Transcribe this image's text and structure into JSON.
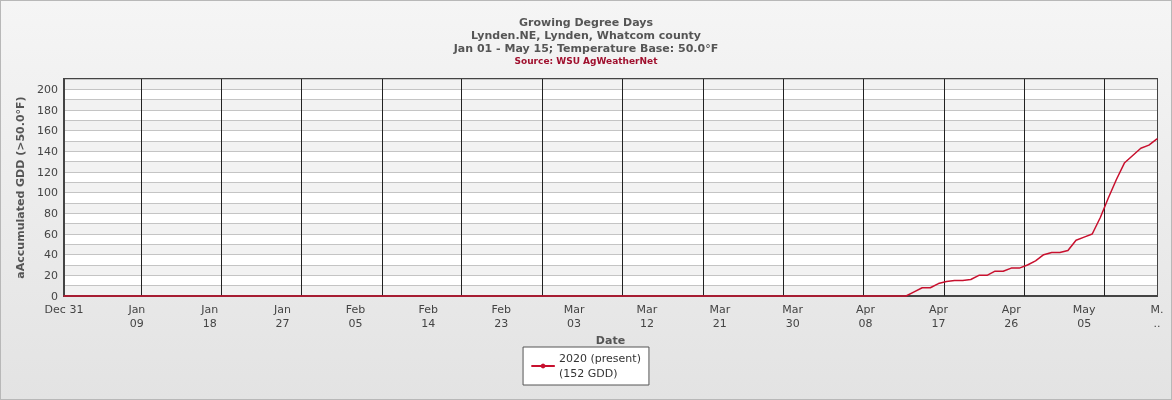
{
  "chart_data": {
    "type": "line",
    "title": "Growing Degree Days",
    "subtitle": "Lynden.NE, Lynden, Whatcom county\nJan 01 - May 15; Temperature Base: 50.0°F",
    "annotations": [
      "Source: WSU AgWeatherNet"
    ],
    "xlabel": "Date",
    "ylabel": "aAccumulated GDD (>50.0°F)",
    "x": [
      "2019-12-31",
      "2020-04-13",
      "2020-04-14",
      "2020-04-15",
      "2020-04-16",
      "2020-04-17",
      "2020-04-18",
      "2020-04-19",
      "2020-04-20",
      "2020-04-21",
      "2020-04-22",
      "2020-04-23",
      "2020-04-24",
      "2020-04-25",
      "2020-04-26",
      "2020-04-27",
      "2020-04-28",
      "2020-04-29",
      "2020-04-30",
      "2020-05-01",
      "2020-05-02",
      "2020-05-03",
      "2020-05-04",
      "2020-05-05",
      "2020-05-06",
      "2020-05-07",
      "2020-05-08",
      "2020-05-09",
      "2020-05-10",
      "2020-05-11",
      "2020-05-12",
      "2020-05-13",
      "2020-05-14"
    ],
    "series": [
      {
        "name": "2020 (present)\n(152 GDD)",
        "color": "#c8102e",
        "values": [
          0,
          0,
          4,
          8,
          8,
          12,
          14,
          15,
          15,
          16,
          20,
          20,
          24,
          24,
          27,
          27,
          30,
          34,
          40,
          42,
          42,
          44,
          54,
          57,
          60,
          76,
          95,
          113,
          129,
          136,
          143,
          146,
          152
        ]
      }
    ],
    "xlim": [
      "2019-12-31",
      "2020-05-14"
    ],
    "xticks": [
      {
        "value": "2019-12-31",
        "label": "Dec 31"
      },
      {
        "value": "2020-01-09",
        "label": "Jan\n09"
      },
      {
        "value": "2020-01-18",
        "label": "Jan\n18"
      },
      {
        "value": "2020-01-27",
        "label": "Jan\n27"
      },
      {
        "value": "2020-02-05",
        "label": "Feb\n05"
      },
      {
        "value": "2020-02-14",
        "label": "Feb\n14"
      },
      {
        "value": "2020-02-23",
        "label": "Feb\n23"
      },
      {
        "value": "2020-03-03",
        "label": "Mar\n03"
      },
      {
        "value": "2020-03-12",
        "label": "Mar\n12"
      },
      {
        "value": "2020-03-21",
        "label": "Mar\n21"
      },
      {
        "value": "2020-03-30",
        "label": "Mar\n30"
      },
      {
        "value": "2020-04-08",
        "label": "Apr\n08"
      },
      {
        "value": "2020-04-17",
        "label": "Apr\n17"
      },
      {
        "value": "2020-04-26",
        "label": "Apr\n26"
      },
      {
        "value": "2020-05-05",
        "label": "May\n05"
      },
      {
        "value": "2020-05-14",
        "label": "M.\n.."
      }
    ],
    "ylim": [
      0,
      210
    ],
    "yticks": [
      0,
      {
        "value": 10,
        "label": null
      },
      20,
      {
        "value": 30,
        "label": null
      },
      40,
      {
        "value": 50,
        "label": null
      },
      60,
      {
        "value": 70,
        "label": null
      },
      80,
      {
        "value": 90,
        "label": null
      },
      100,
      {
        "value": 110,
        "label": null
      },
      120,
      {
        "value": 130,
        "label": null
      },
      140,
      {
        "value": 150,
        "label": null
      },
      160,
      {
        "value": 170,
        "label": null
      },
      180,
      {
        "value": 190,
        "label": null
      },
      200
    ],
    "ref_lines": [
      {
        "axis": "x",
        "value": "2020-01-09T12:00",
        "color": "#222222"
      },
      {
        "axis": "x",
        "value": "2020-01-19T10:00",
        "color": "#222222"
      },
      {
        "axis": "x",
        "value": "2020-01-29T08:00",
        "color": "#222222"
      },
      {
        "axis": "x",
        "value": "2020-02-08T06:00",
        "color": "#222222"
      },
      {
        "axis": "x",
        "value": "2020-02-18T02:00",
        "color": "#222222"
      },
      {
        "axis": "x",
        "value": "2020-02-28T02:00",
        "color": "#222222"
      },
      {
        "axis": "x",
        "value": "2020-03-09T00:00",
        "color": "#222222"
      },
      {
        "axis": "x",
        "value": "2020-03-19T00:00",
        "color": "#222222"
      },
      {
        "axis": "x",
        "value": "2020-03-28T20:00",
        "color": "#222222"
      },
      {
        "axis": "x",
        "value": "2020-04-07T17:00",
        "color": "#222222"
      },
      {
        "axis": "x",
        "value": "2020-04-17T17:00",
        "color": "#222222"
      },
      {
        "axis": "x",
        "value": "2020-04-27T14:00",
        "color": "#222222"
      },
      {
        "axis": "x",
        "value": "2020-05-07T12:00",
        "color": "#222222"
      }
    ],
    "grid": "y",
    "legend": "bottom"
  }
}
